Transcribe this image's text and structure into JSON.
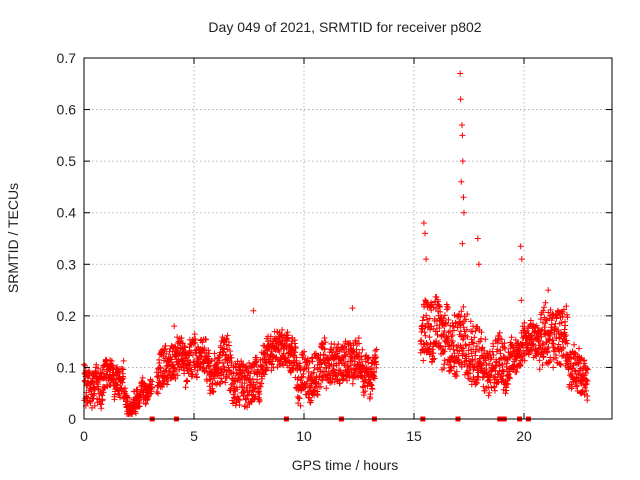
{
  "chart_data": {
    "type": "scatter",
    "title": "Day 049 of 2021, SRMTID for receiver p802",
    "xlabel": "GPS time / hours",
    "ylabel": "SRMTID / TECUs",
    "xlim": [
      0,
      24
    ],
    "ylim": [
      0,
      0.7
    ],
    "x_ticks": [
      0,
      5,
      10,
      15,
      20
    ],
    "x_tick_labels": [
      "0",
      "5",
      "10",
      "15",
      "20"
    ],
    "y_ticks": [
      0,
      0.1,
      0.2,
      0.3,
      0.4,
      0.5,
      0.6,
      0.7
    ],
    "y_tick_labels": [
      "0",
      "0.1",
      "0.2",
      "0.3",
      "0.4",
      "0.5",
      "0.6",
      "0.7"
    ],
    "grid": true,
    "marker": "+",
    "marker_color": "#ff0000",
    "series_envelope": [
      {
        "start": 0.0,
        "end": 0.9,
        "base": 0.08,
        "spread": 0.05
      },
      {
        "start": 0.9,
        "end": 1.8,
        "base": 0.09,
        "spread": 0.04
      },
      {
        "start": 1.8,
        "end": 3.1,
        "base": 0.04,
        "spread": 0.025
      },
      {
        "start": 3.3,
        "end": 4.6,
        "base": 0.08,
        "spread": 0.05
      },
      {
        "start": 4.6,
        "end": 6.2,
        "base": 0.08,
        "spread": 0.05
      },
      {
        "start": 6.2,
        "end": 8.0,
        "base": 0.12,
        "spread": 0.06
      },
      {
        "start": 8.0,
        "end": 9.6,
        "base": 0.09,
        "spread": 0.05
      },
      {
        "start": 9.6,
        "end": 11.0,
        "base": 0.11,
        "spread": 0.06
      },
      {
        "start": 11.0,
        "end": 13.3,
        "base": 0.09,
        "spread": 0.05
      },
      {
        "start": 15.3,
        "end": 16.5,
        "base": 0.16,
        "spread": 0.08
      },
      {
        "start": 16.5,
        "end": 17.9,
        "base": 0.17,
        "spread": 0.09
      },
      {
        "start": 17.9,
        "end": 19.2,
        "base": 0.12,
        "spread": 0.07
      },
      {
        "start": 19.2,
        "end": 20.7,
        "base": 0.11,
        "spread": 0.05
      },
      {
        "start": 20.7,
        "end": 22.0,
        "base": 0.15,
        "spread": 0.08
      },
      {
        "start": 22.0,
        "end": 22.9,
        "base": 0.09,
        "spread": 0.05
      }
    ],
    "spikes": [
      {
        "x": 15.45,
        "y": 0.38
      },
      {
        "x": 15.5,
        "y": 0.36
      },
      {
        "x": 15.55,
        "y": 0.31
      },
      {
        "x": 17.1,
        "y": 0.67
      },
      {
        "x": 17.12,
        "y": 0.62
      },
      {
        "x": 17.18,
        "y": 0.57
      },
      {
        "x": 17.2,
        "y": 0.55
      },
      {
        "x": 17.22,
        "y": 0.5
      },
      {
        "x": 17.15,
        "y": 0.46
      },
      {
        "x": 17.25,
        "y": 0.43
      },
      {
        "x": 17.27,
        "y": 0.4
      },
      {
        "x": 17.2,
        "y": 0.34
      },
      {
        "x": 17.9,
        "y": 0.35
      },
      {
        "x": 17.95,
        "y": 0.3
      },
      {
        "x": 19.85,
        "y": 0.335
      },
      {
        "x": 19.9,
        "y": 0.31
      },
      {
        "x": 19.88,
        "y": 0.23
      },
      {
        "x": 21.1,
        "y": 0.25
      },
      {
        "x": 12.2,
        "y": 0.215
      },
      {
        "x": 7.7,
        "y": 0.21
      },
      {
        "x": 4.1,
        "y": 0.18
      }
    ],
    "zero_markers": [
      3.1,
      4.2,
      9.2,
      11.7,
      13.2,
      15.4,
      17.0,
      18.9,
      19.1,
      19.8,
      20.2
    ]
  }
}
